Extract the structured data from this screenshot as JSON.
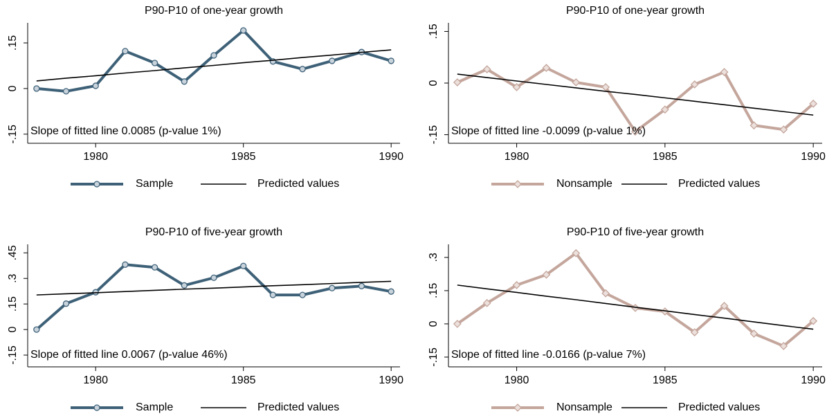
{
  "chart_data": [
    {
      "type": "line",
      "title": "P90-P10 of one-year growth",
      "annotation": "Slope of fitted line 0.0085 (p-value 1%)",
      "x": [
        1978,
        1979,
        1980,
        1981,
        1982,
        1983,
        1984,
        1985,
        1986,
        1987,
        1988,
        1989,
        1990
      ],
      "xlim": [
        1977.7,
        1990.3
      ],
      "xticks": [
        1980,
        1985,
        1990
      ],
      "ylim": [
        -0.18,
        0.216
      ],
      "yticks": [
        {
          "value": -0.15,
          "label": "-.15"
        },
        0,
        {
          "value": 0.15,
          "label": ".15"
        }
      ],
      "series": [
        {
          "name": "Sample",
          "color": "#3e6178",
          "marker": "circle",
          "values": [
            0,
            -0.009,
            0.009,
            0.123,
            0.084,
            0.023,
            0.109,
            0.191,
            0.089,
            0.064,
            0.091,
            0.12,
            0.091
          ]
        },
        {
          "name": "Predicted values",
          "color": "#000000",
          "values": [
            0.025,
            0.034,
            0.042,
            0.051,
            0.059,
            0.068,
            0.076,
            0.085,
            0.093,
            0.102,
            0.11,
            0.119,
            0.127
          ]
        }
      ]
    },
    {
      "type": "line",
      "title": "P90-P10 of one-year growth",
      "annotation": "Slope of fitted line -0.0099 (p-value 1%)",
      "x": [
        1978,
        1979,
        1980,
        1981,
        1982,
        1983,
        1984,
        1985,
        1986,
        1987,
        1988,
        1989,
        1990
      ],
      "xlim": [
        1977.7,
        1990.3
      ],
      "xticks": [
        1980,
        1985,
        1990
      ],
      "ylim": [
        -0.175,
        0.175
      ],
      "yticks": [
        {
          "value": -0.15,
          "label": "-.15"
        },
        0,
        {
          "value": 0.15,
          "label": ".15"
        }
      ],
      "series": [
        {
          "name": "Nonsample",
          "color": "#c4a69c",
          "marker": "diamond",
          "values": [
            0.002,
            0.04,
            -0.012,
            0.044,
            0.002,
            -0.012,
            -0.141,
            -0.077,
            -0.004,
            0.032,
            -0.123,
            -0.135,
            -0.06
          ]
        },
        {
          "name": "Predicted values",
          "color": "#000000",
          "values": [
            0.026,
            0.016,
            0.006,
            -0.004,
            -0.014,
            -0.024,
            -0.033,
            -0.043,
            -0.053,
            -0.063,
            -0.073,
            -0.083,
            -0.093
          ]
        }
      ]
    },
    {
      "type": "line",
      "title": "P90-P10 of five-year growth",
      "annotation": "Slope of fitted line 0.0067 (p-value 46%)",
      "x": [
        1978,
        1979,
        1980,
        1981,
        1982,
        1983,
        1984,
        1985,
        1986,
        1987,
        1988,
        1989,
        1990
      ],
      "xlim": [
        1977.7,
        1990.3
      ],
      "xticks": [
        1980,
        1985,
        1990
      ],
      "ylim": [
        -0.219,
        0.5
      ],
      "yticks": [
        {
          "value": -0.15,
          "label": "-.15"
        },
        0,
        {
          "value": 0.15,
          "label": ".15"
        },
        {
          "value": 0.3,
          "label": ".3"
        },
        {
          "value": 0.45,
          "label": ".45"
        }
      ],
      "series": [
        {
          "name": "Sample",
          "color": "#3e6178",
          "marker": "circle",
          "values": [
            0,
            0.152,
            0.219,
            0.381,
            0.365,
            0.259,
            0.304,
            0.373,
            0.203,
            0.203,
            0.243,
            0.255,
            0.223
          ]
        },
        {
          "name": "Predicted values",
          "color": "#000000",
          "values": [
            0.203,
            0.21,
            0.216,
            0.223,
            0.23,
            0.237,
            0.243,
            0.25,
            0.257,
            0.263,
            0.27,
            0.277,
            0.283
          ]
        }
      ]
    },
    {
      "type": "line",
      "title": "P90-P10 of five-year growth",
      "annotation": "Slope of fitted line -0.0166 (p-value 7%)",
      "x": [
        1978,
        1979,
        1980,
        1981,
        1982,
        1983,
        1984,
        1985,
        1986,
        1987,
        1988,
        1989,
        1990
      ],
      "xlim": [
        1977.7,
        1990.3
      ],
      "xticks": [
        1980,
        1985,
        1990
      ],
      "ylim": [
        -0.194,
        0.359
      ],
      "yticks": [
        {
          "value": -0.15,
          "label": "-.15"
        },
        0,
        {
          "value": 0.15,
          "label": ".15"
        },
        {
          "value": 0.3,
          "label": ".3"
        }
      ],
      "series": [
        {
          "name": "Nonsample",
          "color": "#c4a69c",
          "marker": "diamond",
          "values": [
            0,
            0.094,
            0.175,
            0.222,
            0.319,
            0.138,
            0.072,
            0.056,
            -0.038,
            0.081,
            -0.044,
            -0.1,
            0.013
          ]
        },
        {
          "name": "Predicted values",
          "color": "#000000",
          "values": [
            0.175,
            0.158,
            0.142,
            0.125,
            0.109,
            0.092,
            0.075,
            0.059,
            0.042,
            0.026,
            0.009,
            -0.008,
            -0.024
          ]
        }
      ]
    }
  ]
}
